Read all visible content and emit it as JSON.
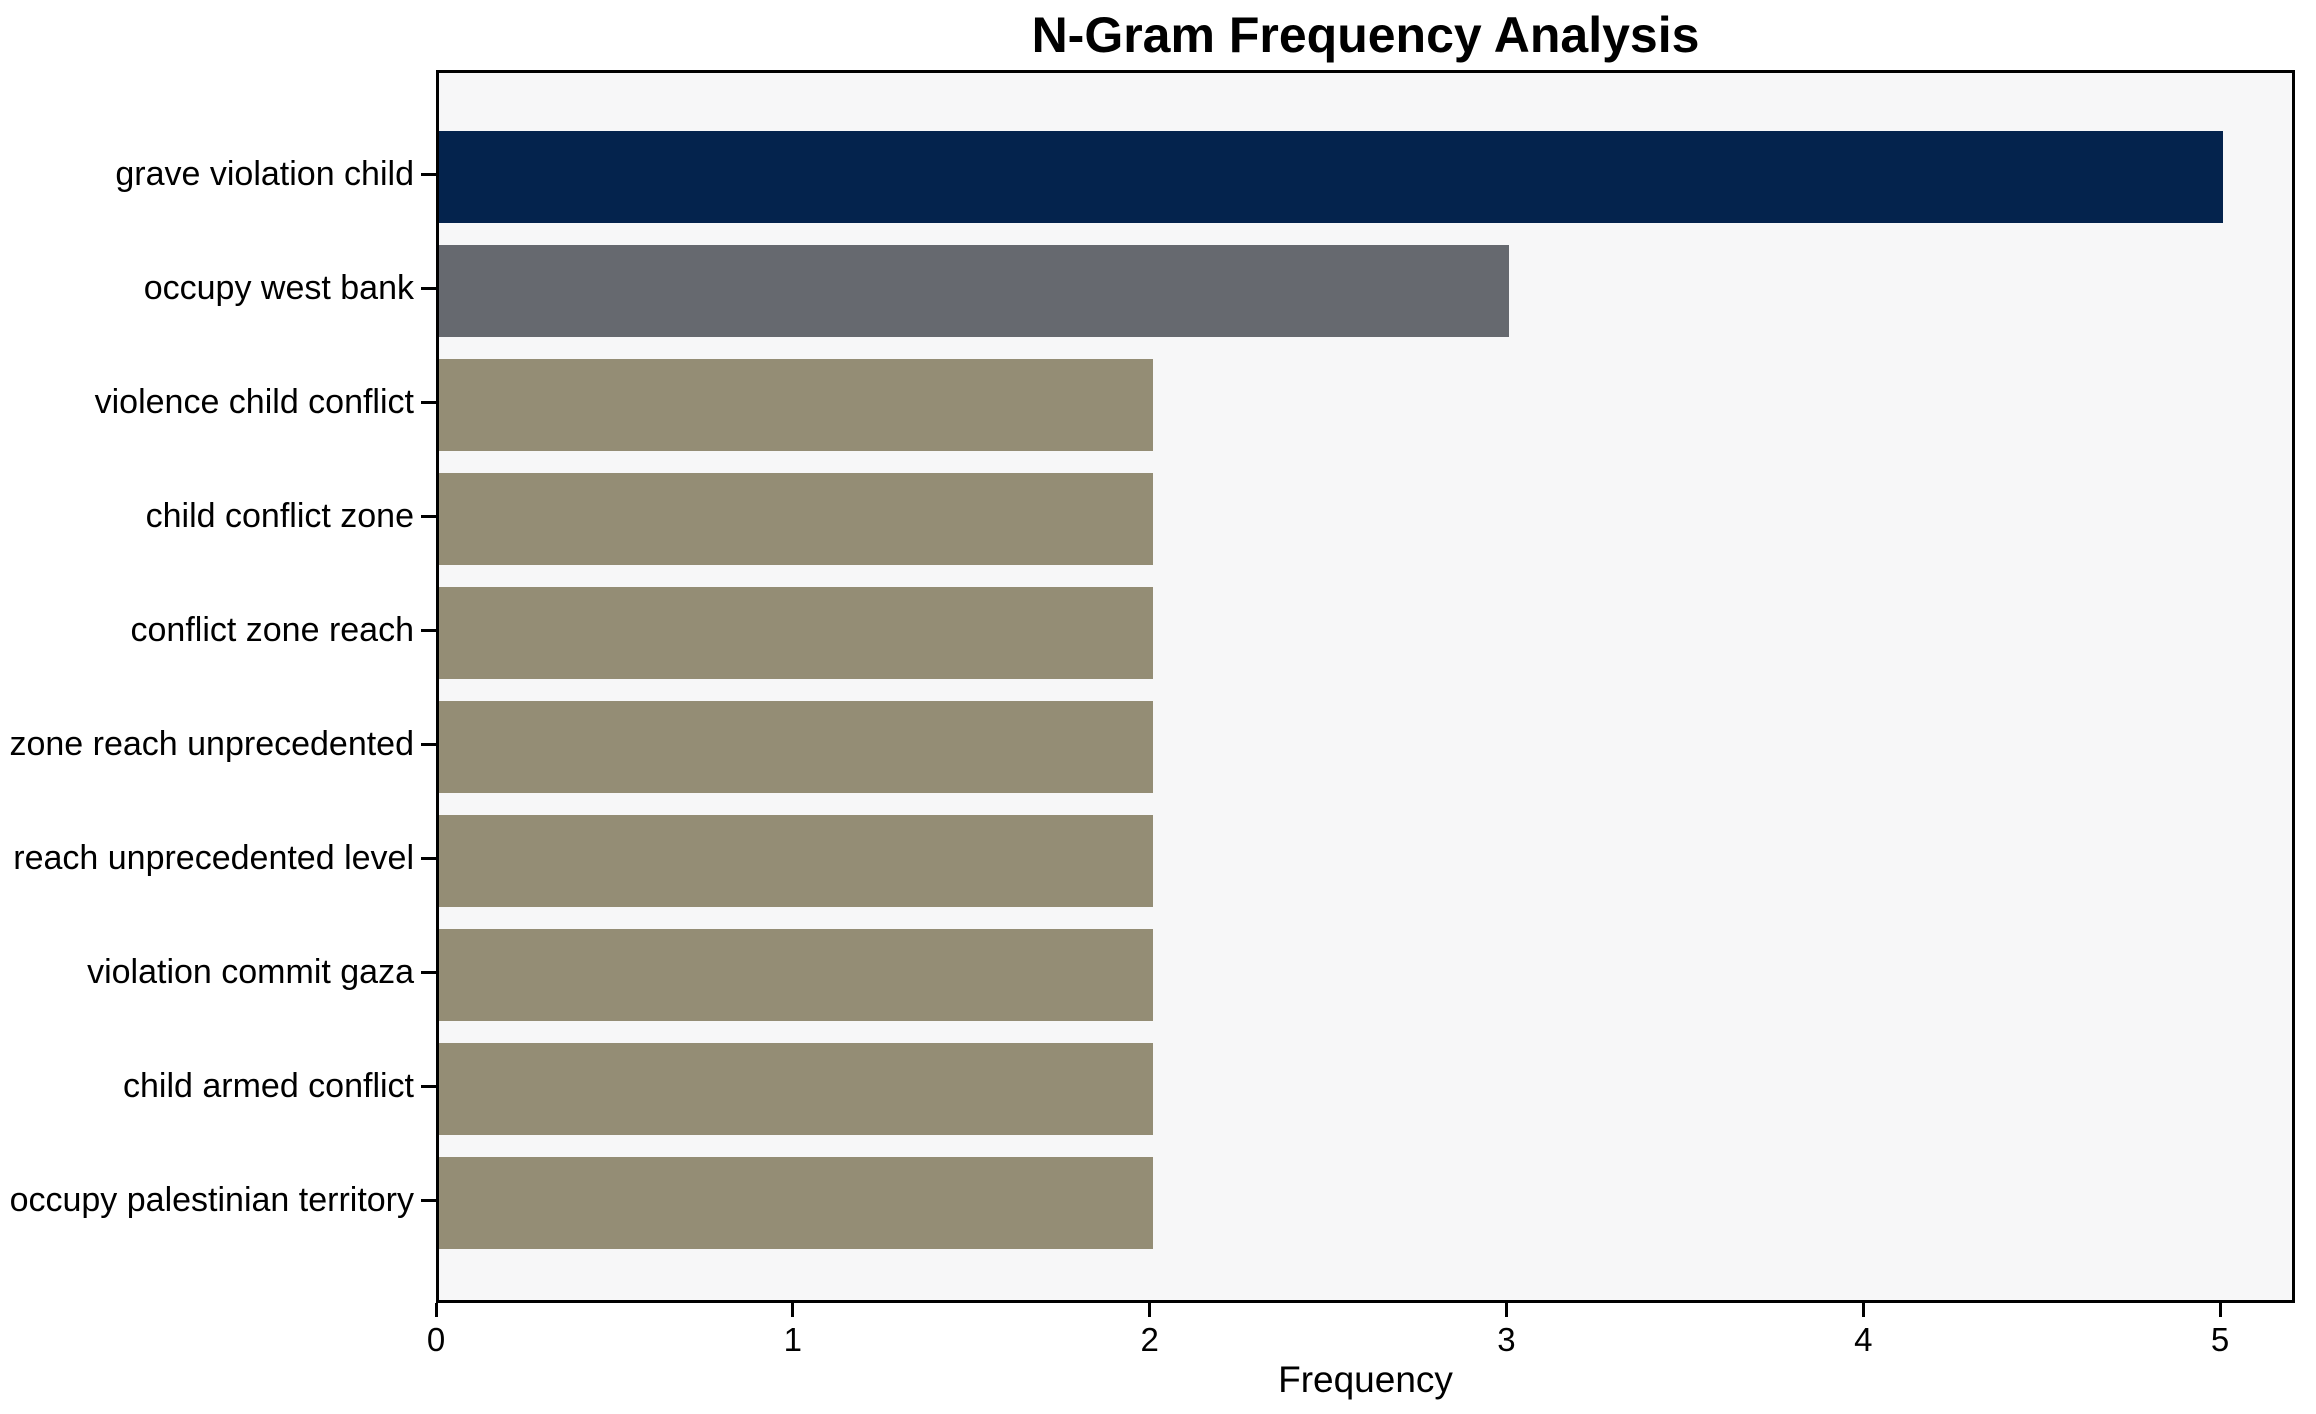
{
  "chart_data": {
    "type": "bar",
    "orientation": "horizontal",
    "title": "N-Gram Frequency Analysis",
    "xlabel": "Frequency",
    "ylabel": "",
    "categories": [
      "grave violation child",
      "occupy west bank",
      "violence child conflict",
      "child conflict zone",
      "conflict zone reach",
      "zone reach unprecedented",
      "reach unprecedented level",
      "violation commit gaza",
      "child armed conflict",
      "occupy palestinian territory"
    ],
    "values": [
      5,
      3,
      2,
      2,
      2,
      2,
      2,
      2,
      2,
      2
    ],
    "bar_colors": [
      "#04234d",
      "#66696f",
      "#948d75",
      "#948d75",
      "#948d75",
      "#948d75",
      "#948d75",
      "#948d75",
      "#948d75",
      "#948d75"
    ],
    "x_ticks": [
      0,
      1,
      2,
      3,
      4,
      5
    ],
    "xlim": [
      0,
      5.21
    ],
    "grid": false,
    "legend": null,
    "plot_background": "#f7f7f8",
    "spine_color": "#000000"
  }
}
